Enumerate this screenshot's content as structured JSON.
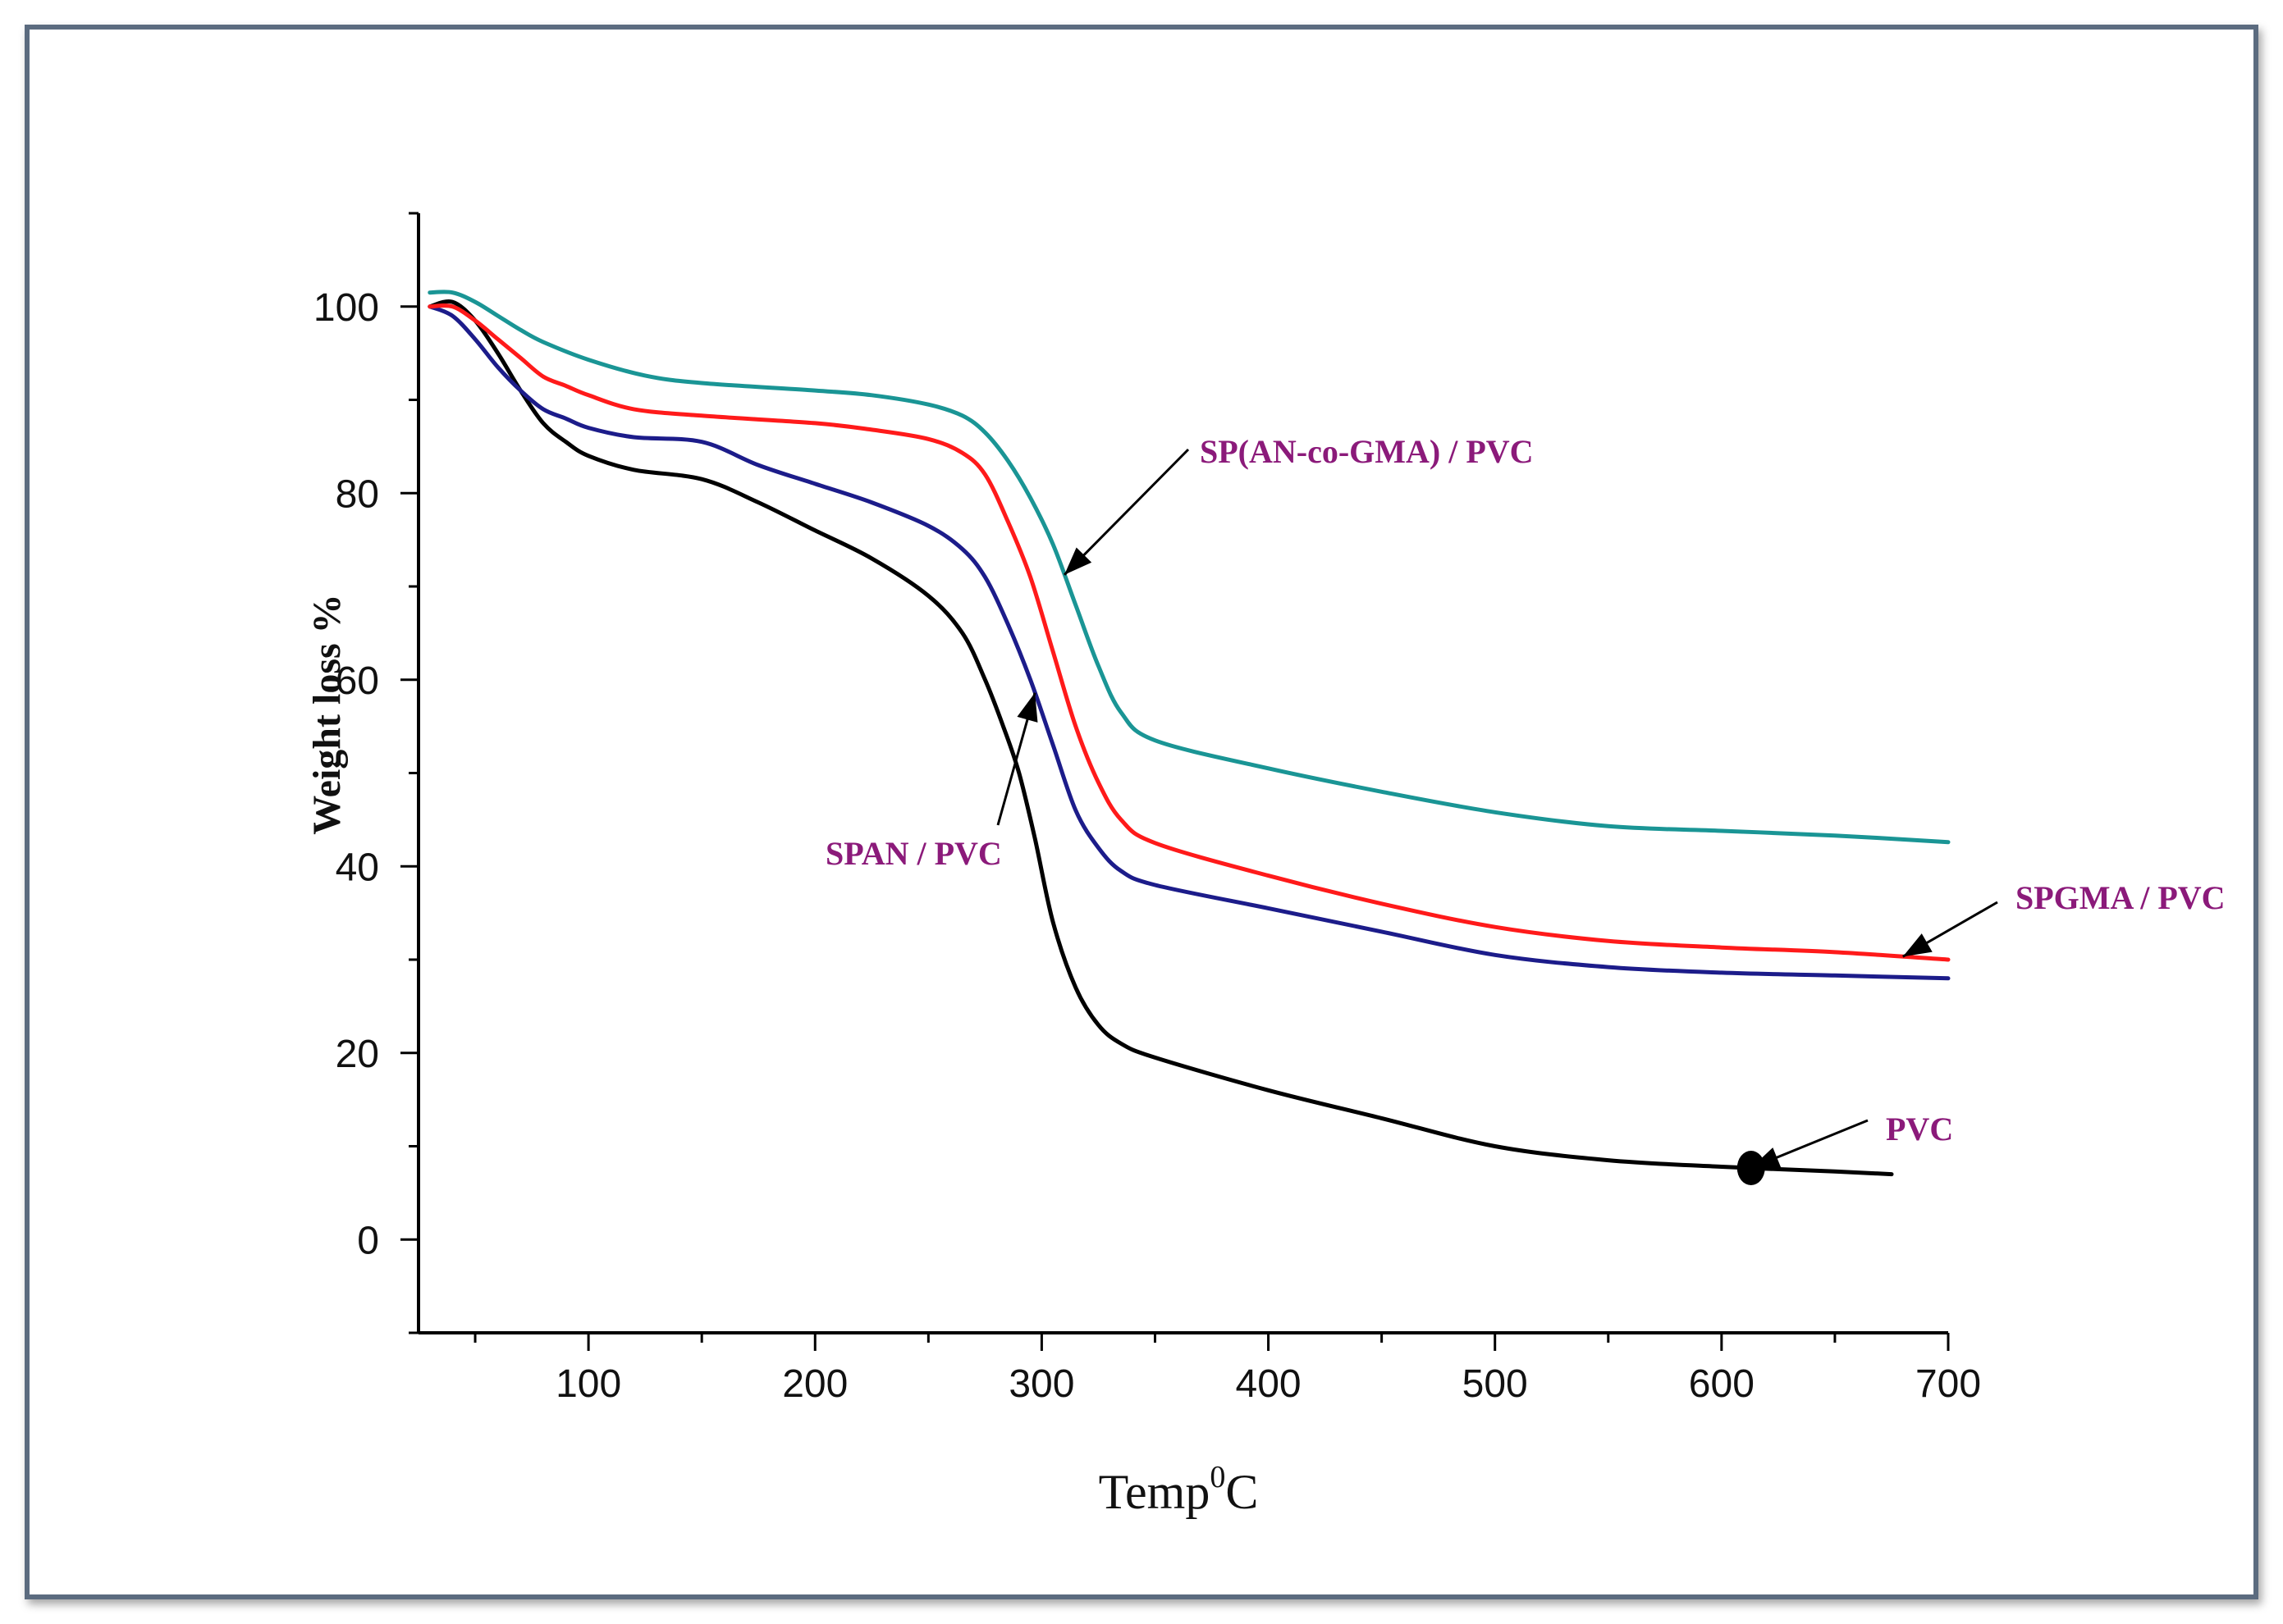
{
  "chart_data": {
    "type": "line",
    "title": "",
    "xlabel": "Temp",
    "xlabel_sup": "0",
    "xlabel_suffix": "C",
    "ylabel": "Weight loss %",
    "xlim": [
      25,
      700
    ],
    "ylim": [
      -10,
      110
    ],
    "xticks": [
      100,
      200,
      300,
      400,
      500,
      600,
      700
    ],
    "yticks": [
      0,
      20,
      40,
      60,
      80,
      100
    ],
    "annotation_color": "#8b1a7a",
    "series": [
      {
        "name": "PVC",
        "color": "#000000",
        "x": [
          30,
          40,
          50,
          60,
          70,
          80,
          90,
          100,
          120,
          150,
          175,
          200,
          225,
          250,
          265,
          275,
          283,
          290,
          297,
          305,
          315,
          325,
          335,
          350,
          400,
          450,
          500,
          550,
          600,
          650,
          675
        ],
        "y": [
          100,
          100.5,
          98.5,
          95,
          91,
          87.5,
          85.5,
          84,
          82.5,
          81.5,
          79,
          76,
          73,
          69,
          65,
          60,
          55,
          50,
          43,
          34,
          27,
          23,
          21,
          19.5,
          16,
          13,
          10,
          8.5,
          7.8,
          7.3,
          7
        ]
      },
      {
        "name": "SPAN / PVC",
        "color": "#1c1c8a",
        "x": [
          30,
          40,
          50,
          60,
          70,
          80,
          90,
          100,
          120,
          150,
          175,
          200,
          225,
          250,
          265,
          275,
          285,
          295,
          305,
          315,
          325,
          335,
          350,
          400,
          450,
          500,
          550,
          600,
          650,
          700
        ],
        "y": [
          100,
          99,
          96.5,
          93.5,
          91,
          89,
          88,
          87,
          86,
          85.5,
          83,
          81,
          79,
          76.5,
          74,
          71,
          66,
          60,
          53,
          46,
          42,
          39.5,
          38,
          35.5,
          33,
          30.5,
          29.2,
          28.6,
          28.3,
          28
        ]
      },
      {
        "name": "SPGMA / PVC",
        "color": "#ff1a1a",
        "x": [
          30,
          40,
          50,
          60,
          70,
          80,
          90,
          100,
          120,
          150,
          200,
          225,
          250,
          265,
          275,
          285,
          295,
          305,
          315,
          325,
          335,
          350,
          400,
          450,
          500,
          550,
          600,
          650,
          700
        ],
        "y": [
          100,
          100,
          98.5,
          96.5,
          94.5,
          92.5,
          91.5,
          90.5,
          89,
          88.3,
          87.5,
          86.8,
          85.8,
          84.3,
          82,
          77,
          71,
          63,
          55,
          49,
          45,
          42.5,
          39,
          36,
          33.5,
          32,
          31.3,
          30.8,
          30
        ]
      },
      {
        "name": "SP(AN-co-GMA) / PVC",
        "color": "#1a9595",
        "x": [
          30,
          40,
          50,
          60,
          70,
          80,
          100,
          125,
          150,
          200,
          225,
          250,
          265,
          275,
          285,
          295,
          305,
          315,
          325,
          335,
          350,
          400,
          450,
          500,
          550,
          600,
          650,
          700
        ],
        "y": [
          101.5,
          101.5,
          100.5,
          99,
          97.5,
          96.2,
          94.3,
          92.6,
          91.8,
          91,
          90.5,
          89.5,
          88.3,
          86.5,
          83.5,
          79.5,
          74.5,
          68,
          61.5,
          56.5,
          53.5,
          50.5,
          48,
          45.8,
          44.3,
          43.8,
          43.3,
          42.6
        ]
      }
    ],
    "annotations": [
      {
        "text": "SP(AN-co-GMA) / PVC",
        "target_series": "SP(AN-co-GMA) / PVC",
        "target_x": 310
      },
      {
        "text": "SPAN / PVC",
        "target_series": "SPAN / PVC",
        "target_x": 297
      },
      {
        "text": "SPGMA / PVC",
        "target_series": "SPGMA / PVC",
        "target_x": 680
      },
      {
        "text": "PVC",
        "target_series": "PVC",
        "target_x": 613
      }
    ]
  }
}
